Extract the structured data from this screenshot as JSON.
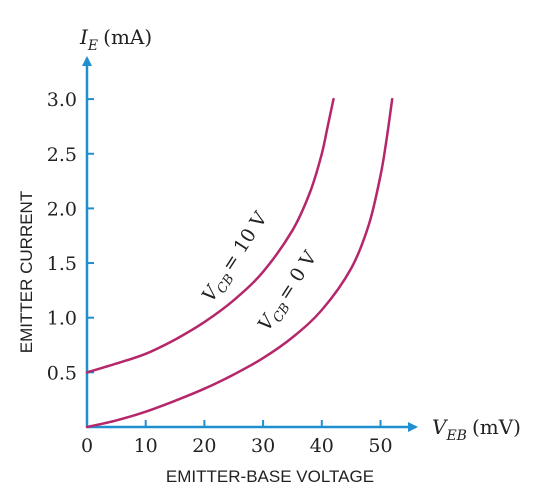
{
  "chart_data": {
    "type": "line",
    "y_axis": {
      "symbol": "I",
      "subscript": "E",
      "unit": "(mA)",
      "side_label": "EMITTER CURRENT"
    },
    "x_axis": {
      "symbol": "V",
      "subscript": "EB",
      "unit": "(mV)",
      "bottom_label": "EMITTER-BASE VOLTAGE"
    },
    "xlim": [
      0,
      55
    ],
    "ylim": [
      0,
      3.0
    ],
    "x_ticks": [
      "0",
      "10",
      "20",
      "30",
      "40",
      "50"
    ],
    "y_ticks": [
      "0.5",
      "1.0",
      "1.5",
      "2.0",
      "2.5",
      "3.0"
    ],
    "grid": false,
    "colors": {
      "axis": "#1f8fd0",
      "curve": "#b5266b",
      "text": "#222222"
    },
    "series": [
      {
        "label_symbol": "V",
        "label_subscript": "CB",
        "label_value": "= 10 V",
        "x": [
          0,
          5,
          10,
          15,
          20,
          25,
          30,
          35,
          38,
          40,
          41,
          42
        ],
        "y": [
          0.5,
          0.58,
          0.67,
          0.8,
          0.96,
          1.16,
          1.42,
          1.8,
          2.15,
          2.5,
          2.75,
          3.0
        ]
      },
      {
        "label_symbol": "V",
        "label_subscript": "CB",
        "label_value": "= 0 V",
        "x": [
          0,
          5,
          10,
          15,
          20,
          25,
          30,
          35,
          40,
          45,
          48,
          50,
          51,
          52
        ],
        "y": [
          0.0,
          0.06,
          0.14,
          0.24,
          0.35,
          0.48,
          0.63,
          0.82,
          1.07,
          1.45,
          1.85,
          2.3,
          2.62,
          3.0
        ]
      }
    ]
  }
}
